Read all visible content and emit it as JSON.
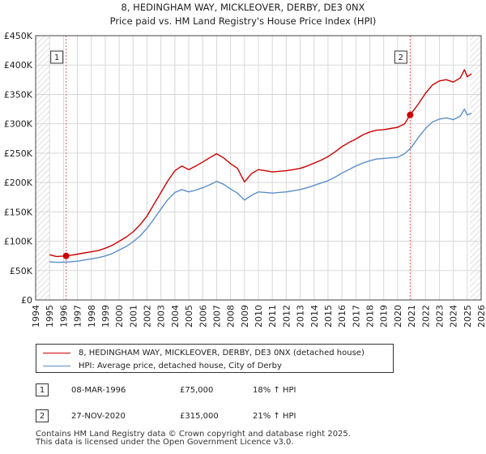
{
  "chart_data": {
    "type": "line",
    "title": "8, HEDINGHAM WAY, MICKLEOVER, DERBY, DE3 0NX",
    "subtitle": "Price paid vs. HM Land Registry's House Price Index (HPI)",
    "xlabel": "",
    "ylabel": "",
    "xlim": [
      1994,
      2026
    ],
    "ylim": [
      0,
      450000
    ],
    "x_ticks": [
      "1994",
      "1995",
      "1996",
      "1997",
      "1998",
      "1999",
      "2000",
      "2001",
      "2002",
      "2003",
      "2004",
      "2005",
      "2006",
      "2007",
      "2008",
      "2009",
      "2010",
      "2011",
      "2012",
      "2013",
      "2014",
      "2015",
      "2016",
      "2017",
      "2018",
      "2019",
      "2020",
      "2021",
      "2022",
      "2023",
      "2024",
      "2025",
      "2026"
    ],
    "y_ticks": [
      {
        "value": 0,
        "label": "£0"
      },
      {
        "value": 50000,
        "label": "£50K"
      },
      {
        "value": 100000,
        "label": "£100K"
      },
      {
        "value": 150000,
        "label": "£150K"
      },
      {
        "value": 200000,
        "label": "£200K"
      },
      {
        "value": 250000,
        "label": "£250K"
      },
      {
        "value": 300000,
        "label": "£300K"
      },
      {
        "value": 350000,
        "label": "£350K"
      },
      {
        "value": 400000,
        "label": "£400K"
      },
      {
        "value": 450000,
        "label": "£450K"
      }
    ],
    "grid": true,
    "series": [
      {
        "name": "8, HEDINGHAM WAY, MICKLEOVER, DERBY, DE3 0NX (detached house)",
        "color": "#cc0000",
        "x": [
          1995.0,
          1995.5,
          1996.19,
          1996.5,
          1997.0,
          1997.5,
          1998.0,
          1998.5,
          1999.0,
          1999.5,
          2000.0,
          2000.5,
          2001.0,
          2001.5,
          2002.0,
          2002.5,
          2003.0,
          2003.5,
          2004.0,
          2004.5,
          2005.0,
          2005.5,
          2006.0,
          2006.5,
          2007.0,
          2007.5,
          2008.0,
          2008.5,
          2009.0,
          2009.5,
          2010.0,
          2010.5,
          2011.0,
          2011.5,
          2012.0,
          2012.5,
          2013.0,
          2013.5,
          2014.0,
          2014.5,
          2015.0,
          2015.5,
          2016.0,
          2016.5,
          2017.0,
          2017.5,
          2018.0,
          2018.5,
          2019.0,
          2019.5,
          2020.0,
          2020.5,
          2020.9,
          2021.5,
          2022.0,
          2022.5,
          2023.0,
          2023.5,
          2024.0,
          2024.5,
          2024.8,
          2025.0,
          2025.3
        ],
        "values": [
          77000,
          74000,
          75000,
          76000,
          78000,
          80000,
          82000,
          84000,
          88000,
          93000,
          100000,
          107000,
          116000,
          128000,
          143000,
          163000,
          183000,
          203000,
          220000,
          228000,
          222000,
          228000,
          235000,
          242000,
          249000,
          242000,
          232000,
          224000,
          201000,
          215000,
          222000,
          220000,
          218000,
          219000,
          220000,
          222000,
          224000,
          228000,
          233000,
          238000,
          244000,
          252000,
          261000,
          268000,
          274000,
          281000,
          286000,
          289000,
          290000,
          292000,
          294000,
          300000,
          315000,
          334000,
          352000,
          366000,
          373000,
          375000,
          371000,
          378000,
          392000,
          380000,
          385000
        ]
      },
      {
        "name": "HPI: Average price, detached house, City of Derby",
        "color": "#5b8fc9",
        "x": [
          1995.0,
          1995.5,
          1996.0,
          1996.5,
          1997.0,
          1997.5,
          1998.0,
          1998.5,
          1999.0,
          1999.5,
          2000.0,
          2000.5,
          2001.0,
          2001.5,
          2002.0,
          2002.5,
          2003.0,
          2003.5,
          2004.0,
          2004.5,
          2005.0,
          2005.5,
          2006.0,
          2006.5,
          2007.0,
          2007.5,
          2008.0,
          2008.5,
          2009.0,
          2009.5,
          2010.0,
          2010.5,
          2011.0,
          2011.5,
          2012.0,
          2012.5,
          2013.0,
          2013.5,
          2014.0,
          2014.5,
          2015.0,
          2015.5,
          2016.0,
          2016.5,
          2017.0,
          2017.5,
          2018.0,
          2018.5,
          2019.0,
          2019.5,
          2020.0,
          2020.5,
          2021.0,
          2021.5,
          2022.0,
          2022.5,
          2023.0,
          2023.5,
          2024.0,
          2024.5,
          2024.8,
          2025.0,
          2025.3
        ],
        "values": [
          65000,
          64000,
          64500,
          65000,
          66000,
          68000,
          70000,
          72000,
          75000,
          79000,
          85000,
          91000,
          99000,
          109000,
          122000,
          138000,
          155000,
          171000,
          183000,
          188000,
          184000,
          187000,
          191000,
          196000,
          202000,
          197000,
          189000,
          182000,
          170000,
          178000,
          184000,
          183000,
          182000,
          183000,
          184000,
          186000,
          188000,
          191000,
          195000,
          199000,
          203000,
          209000,
          216000,
          222000,
          228000,
          233000,
          237000,
          240000,
          241000,
          242000,
          243000,
          249000,
          260000,
          277000,
          292000,
          303000,
          308000,
          310000,
          307000,
          313000,
          325000,
          315000,
          318000
        ]
      }
    ],
    "sales": [
      {
        "num": "1",
        "date": "08-MAR-1996",
        "price": "£75,000",
        "hpi": "18% ↑ HPI",
        "x": 1996.19,
        "y": 75000
      },
      {
        "num": "2",
        "date": "27-NOV-2020",
        "price": "£315,000",
        "hpi": "21% ↑ HPI",
        "x": 2020.9,
        "y": 315000
      }
    ],
    "legend_position": "bottom"
  },
  "legend": {
    "series1": "8, HEDINGHAM WAY, MICKLEOVER, DERBY, DE3 0NX (detached house)",
    "series2": "HPI: Average price, detached house, City of Derby"
  },
  "table": [
    {
      "num": "1",
      "date": "08-MAR-1996",
      "price": "£75,000",
      "hpi": "18% ↑ HPI"
    },
    {
      "num": "2",
      "date": "27-NOV-2020",
      "price": "£315,000",
      "hpi": "21% ↑ HPI"
    }
  ],
  "footer": {
    "line1": "Contains HM Land Registry data © Crown copyright and database right 2025.",
    "line2": "This data is licensed under the Open Government Licence v3.0."
  }
}
